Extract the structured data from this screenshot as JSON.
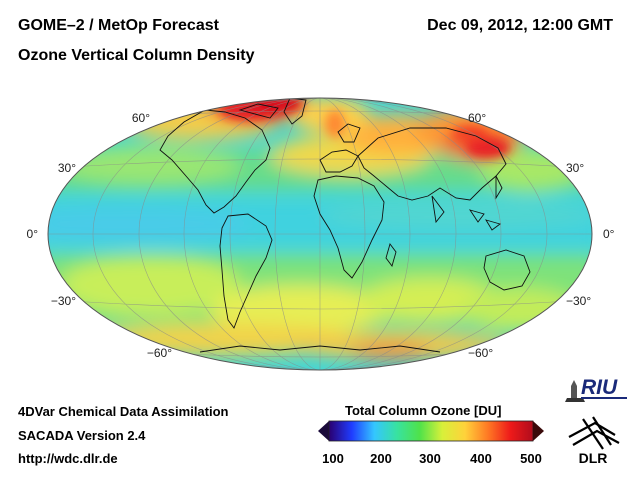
{
  "header": {
    "title": "GOME–2 / MetOp Forecast",
    "subtitle": "Ozone Vertical Column Density",
    "datetime": "Dec 09, 2012, 12:00 GMT"
  },
  "map": {
    "projection": "Hammer-Aitoff (global)",
    "lat_labels_left": [
      "60°",
      "30°",
      "0°",
      "−30°",
      "−60°"
    ],
    "lat_labels_right": [
      "60°",
      "30°",
      "0°",
      "−30°",
      "−60°"
    ]
  },
  "footer": {
    "line1": "4DVar Chemical Data Assimilation",
    "line2": "SACADA Version 2.4",
    "line3": "http://wdc.dlr.de"
  },
  "colorbar": {
    "title": "Total Column Ozone [DU]",
    "ticks": [
      "100",
      "200",
      "300",
      "400",
      "500"
    ],
    "stops": [
      "#2a0070",
      "#1f3cff",
      "#34c6ff",
      "#38e2a0",
      "#4fe24a",
      "#d8f03a",
      "#ffd23a",
      "#ff7a24",
      "#ee1a1a",
      "#b00c1c"
    ]
  },
  "logos": {
    "riu": "RIU",
    "dlr": "DLR"
  }
}
